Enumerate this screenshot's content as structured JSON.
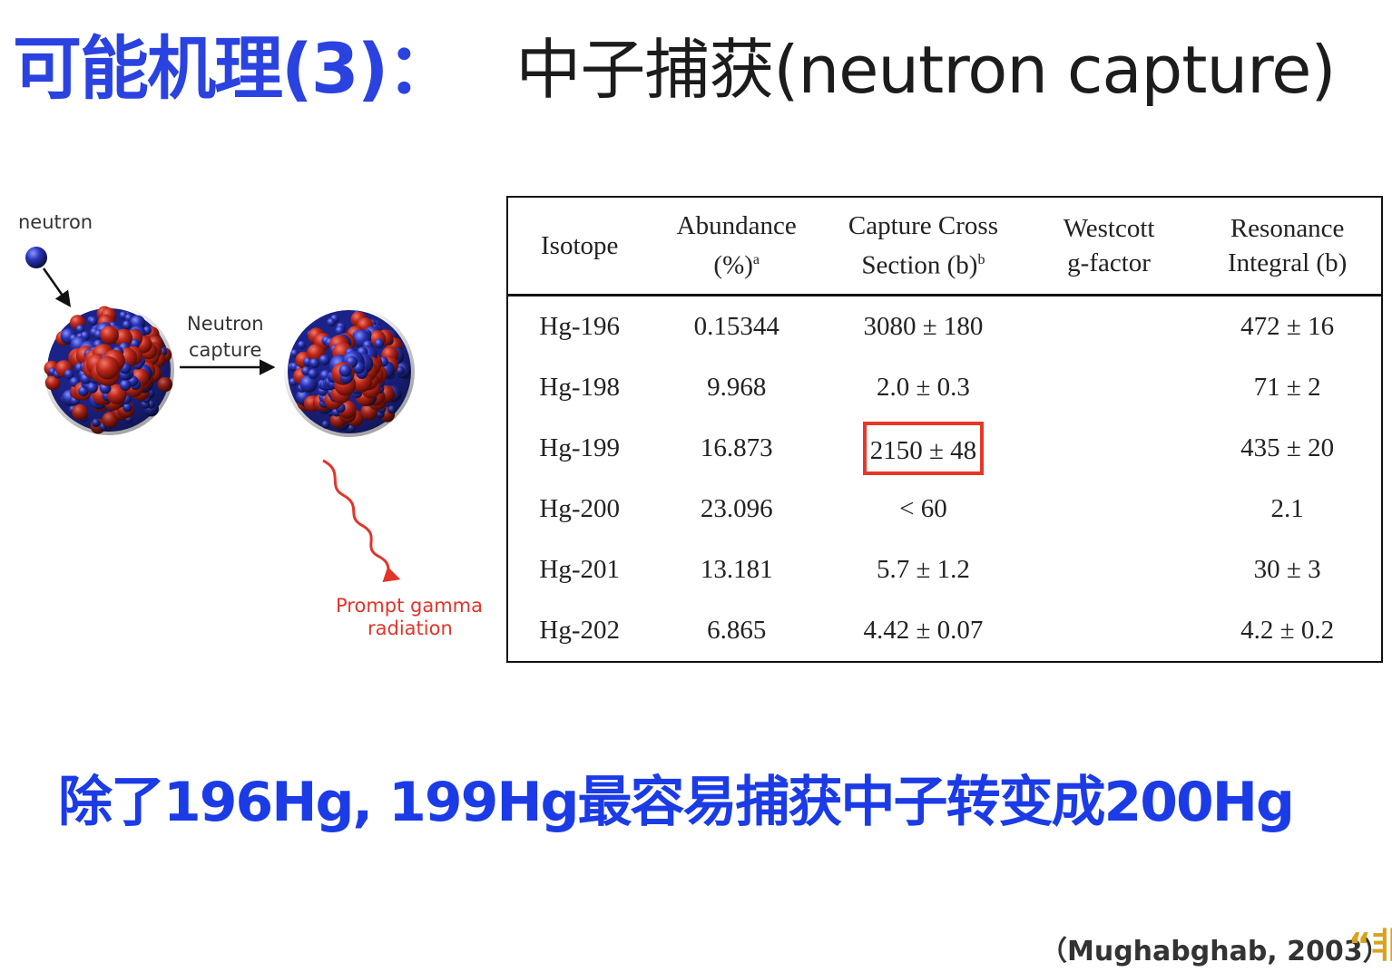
{
  "title": {
    "part1": "可能机理(3)：",
    "part2": "中子捕获(neutron capture)"
  },
  "diagram": {
    "neutron_label": "neutron",
    "capture_label_line1": "Neutron",
    "capture_label_line2": "capture",
    "gamma_label_line1": "Prompt gamma",
    "gamma_label_line2": "radiation",
    "colors": {
      "proton": "#c0281b",
      "neutron": "#2a34b8",
      "gamma": "#e2352a"
    }
  },
  "table": {
    "headers": {
      "isotope": "Isotope",
      "abundance_line1": "Abundance",
      "abundance_line2": "(%)",
      "abundance_sup": "a",
      "capture_line1": "Capture Cross",
      "capture_line2": "Section (b)",
      "capture_sup": "b",
      "westcott_line1": "Westcott",
      "westcott_line2": "g-factor",
      "resonance_line1": "Resonance",
      "resonance_line2": "Integral (b)"
    },
    "rows": [
      {
        "isotope": "Hg-196",
        "abundance": "0.15344",
        "capture": "3080 ± 180",
        "westcott": "",
        "resonance": "472 ± 16"
      },
      {
        "isotope": "Hg-198",
        "abundance": "9.968",
        "capture": "2.0 ± 0.3",
        "westcott": "",
        "resonance": "71 ± 2"
      },
      {
        "isotope": "Hg-199",
        "abundance": "16.873",
        "capture": "2150 ± 48",
        "westcott": "",
        "resonance": "435 ± 20"
      },
      {
        "isotope": "Hg-200",
        "abundance": "23.096",
        "capture": "< 60",
        "westcott": "",
        "resonance": "2.1"
      },
      {
        "isotope": "Hg-201",
        "abundance": "13.181",
        "capture": "5.7 ± 1.2",
        "westcott": "",
        "resonance": "30 ± 3"
      },
      {
        "isotope": "Hg-202",
        "abundance": "6.865",
        "capture": "4.42 ± 0.07",
        "westcott": "",
        "resonance": "4.2 ± 0.2"
      }
    ],
    "highlight_color": "#e7372a"
  },
  "summary": "除了196Hg, 199Hg最容易捕获中子转变成200Hg",
  "citation": "（Mughabghab, 2003）",
  "corner_text": "“非"
}
